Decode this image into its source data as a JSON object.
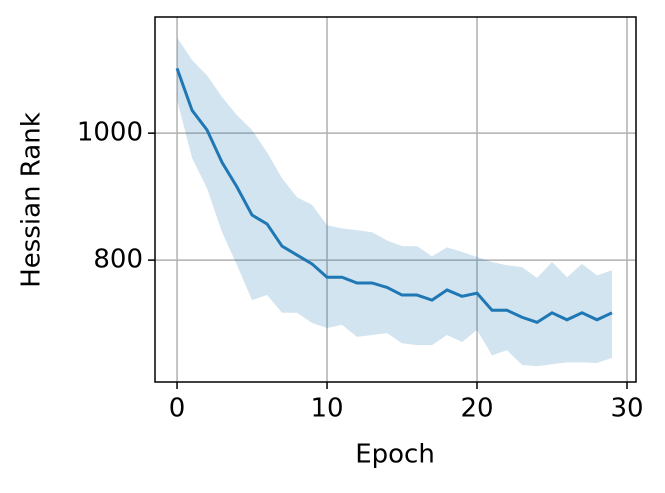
{
  "chart_data": {
    "type": "line",
    "xlabel": "Epoch",
    "ylabel": "Hessian Rank",
    "x": [
      0,
      1,
      2,
      3,
      4,
      5,
      6,
      7,
      8,
      9,
      10,
      11,
      12,
      13,
      14,
      15,
      16,
      17,
      18,
      19,
      20,
      21,
      22,
      23,
      24,
      25,
      26,
      27,
      28,
      29
    ],
    "series": [
      {
        "color": "#1f77b4",
        "values": [
          1102,
          1036,
          1005,
          954,
          915,
          871,
          857,
          822,
          808,
          794,
          773,
          773,
          764,
          764,
          757,
          745,
          745,
          737,
          753,
          743,
          748,
          721,
          721,
          710,
          702,
          717,
          706,
          717,
          706,
          717
        ],
        "upper": [
          1151,
          1115,
          1091,
          1057,
          1028,
          1005,
          970,
          929,
          899,
          887,
          855,
          850,
          847,
          844,
          831,
          822,
          822,
          806,
          820,
          813,
          805,
          797,
          792,
          789,
          772,
          797,
          773,
          794,
          776,
          784
        ],
        "lower": [
          1052,
          961,
          913,
          844,
          792,
          737,
          745,
          717,
          717,
          701,
          693,
          698,
          679,
          682,
          685,
          669,
          666,
          666,
          682,
          671,
          690,
          650,
          658,
          635,
          633,
          636,
          639,
          639,
          638,
          646
        ]
      }
    ],
    "xlim": [
      -1.47,
      30.6
    ],
    "ylim": [
      608,
      1183
    ],
    "xticks": [
      0,
      10,
      20,
      30
    ],
    "yticks": [
      800,
      1000
    ],
    "grid": true
  }
}
